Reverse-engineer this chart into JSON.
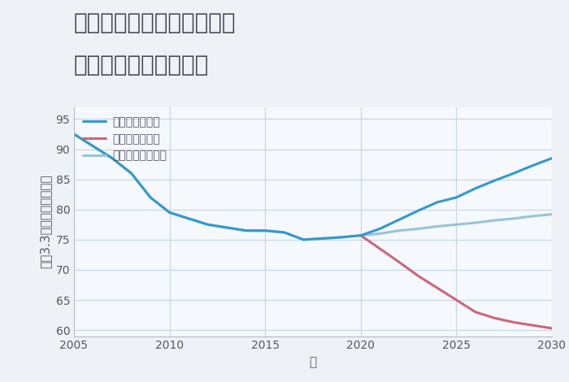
{
  "title_line1": "奈良県奈良市北之庄西町の",
  "title_line2": "中古戸建ての価格推移",
  "xlabel": "年",
  "ylabel": "坪（3.3㎡）単価（万円）",
  "ylim": [
    59,
    97
  ],
  "xlim": [
    2005,
    2030
  ],
  "xticks": [
    2005,
    2010,
    2015,
    2020,
    2025,
    2030
  ],
  "yticks": [
    60,
    65,
    70,
    75,
    80,
    85,
    90,
    95
  ],
  "background_color": "#eef2f7",
  "plot_bg_color": "#f5f8fc",
  "grid_color": "#c5d5e5",
  "good_scenario": {
    "label": "グッドシナリオ",
    "color": "#3399cc",
    "linewidth": 2.2,
    "x": [
      2005,
      2006,
      2007,
      2008,
      2009,
      2010,
      2011,
      2012,
      2013,
      2014,
      2015,
      2016,
      2017,
      2018,
      2019,
      2020,
      2021,
      2022,
      2023,
      2024,
      2025,
      2026,
      2027,
      2028,
      2029,
      2030
    ],
    "y": [
      92.5,
      90.5,
      88.5,
      86.0,
      82.0,
      79.5,
      78.5,
      77.5,
      77.0,
      76.5,
      76.5,
      76.2,
      75.0,
      75.2,
      75.4,
      75.7,
      76.8,
      78.3,
      79.8,
      81.2,
      82.0,
      83.5,
      84.8,
      86.0,
      87.3,
      88.5
    ]
  },
  "bad_scenario": {
    "label": "バッドシナリオ",
    "color": "#cc6677",
    "linewidth": 2.2,
    "x": [
      2020,
      2021,
      2022,
      2023,
      2024,
      2025,
      2026,
      2027,
      2028,
      2029,
      2030
    ],
    "y": [
      75.7,
      73.5,
      71.3,
      69.0,
      67.0,
      65.0,
      63.0,
      62.0,
      61.3,
      60.8,
      60.3
    ]
  },
  "normal_scenario": {
    "label": "ノーマルシナリオ",
    "color": "#99c4d8",
    "linewidth": 2.2,
    "x": [
      2005,
      2006,
      2007,
      2008,
      2009,
      2010,
      2011,
      2012,
      2013,
      2014,
      2015,
      2016,
      2017,
      2018,
      2019,
      2020,
      2021,
      2022,
      2023,
      2024,
      2025,
      2026,
      2027,
      2028,
      2029,
      2030
    ],
    "y": [
      92.5,
      90.5,
      88.5,
      86.0,
      82.0,
      79.5,
      78.5,
      77.5,
      77.0,
      76.5,
      76.5,
      76.2,
      75.0,
      75.2,
      75.4,
      75.7,
      76.0,
      76.5,
      76.8,
      77.2,
      77.5,
      77.8,
      78.2,
      78.5,
      78.9,
      79.2
    ]
  },
  "title_fontsize": 20,
  "axis_label_fontsize": 11,
  "tick_fontsize": 10,
  "legend_fontsize": 10
}
